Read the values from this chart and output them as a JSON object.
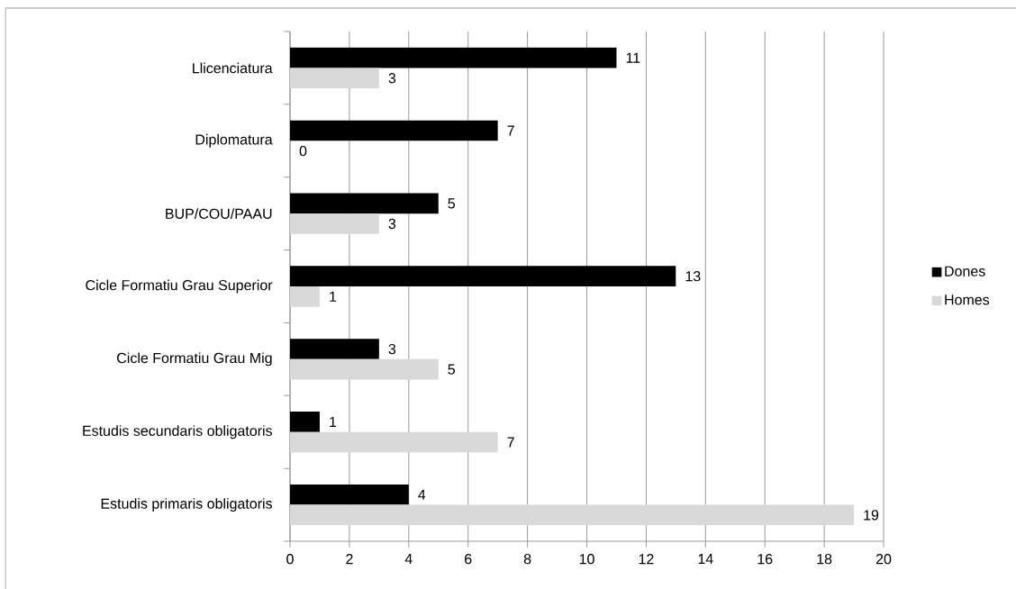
{
  "chart_data": {
    "type": "bar",
    "orientation": "horizontal",
    "categories": [
      "Llicenciatura",
      "Diplomatura",
      "BUP/COU/PAAU",
      "Cicle Formatiu Grau Superior",
      "Cicle Formatiu Grau Mig",
      "Estudis secundaris obligatoris",
      "Estudis primaris obligatoris"
    ],
    "series": [
      {
        "name": "Dones",
        "color": "#000000",
        "values": [
          11,
          7,
          5,
          13,
          3,
          1,
          4
        ]
      },
      {
        "name": "Homes",
        "color": "#d9d9d9",
        "values": [
          3,
          0,
          3,
          1,
          5,
          7,
          19
        ]
      }
    ],
    "xlim": [
      0,
      20
    ],
    "xticks": [
      0,
      2,
      4,
      6,
      8,
      10,
      12,
      14,
      16,
      18,
      20
    ],
    "grid": "x",
    "legend": "right",
    "data_labels": true
  }
}
